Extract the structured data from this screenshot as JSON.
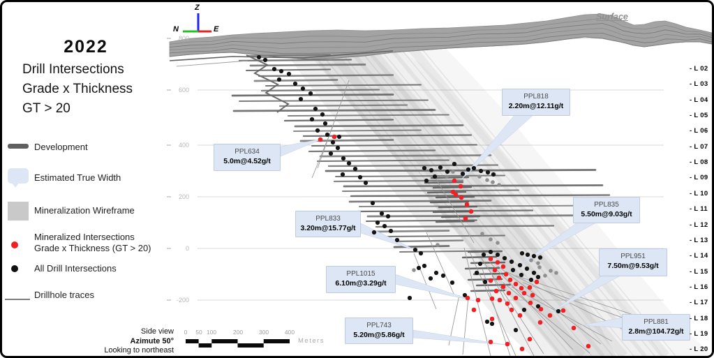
{
  "title": {
    "year": "2022",
    "lines": [
      "Drill Intersections",
      "Grade x Thickness",
      "GT > 20"
    ]
  },
  "legend": [
    {
      "name": "development",
      "label": "Development"
    },
    {
      "name": "estimated-true-width",
      "label": "Estimated True Width"
    },
    {
      "name": "mineralization-wireframe",
      "label": "Mineralization Wireframe"
    },
    {
      "name": "mineralized-intersections",
      "label": "Mineralized Intersections",
      "label2": "Grade x Thickness (GT > 20)"
    },
    {
      "name": "all-drill-intersections",
      "label": "All Drill Intersections"
    },
    {
      "name": "drillhole-traces",
      "label": "Drillhole traces"
    }
  ],
  "callouts": [
    {
      "id": "PPL634",
      "value": "5.0m@4.52g/t"
    },
    {
      "id": "PPL818",
      "value": "2.20m@12.11g/t"
    },
    {
      "id": "PPL833",
      "value": "3.20m@15.77g/t"
    },
    {
      "id": "PPL1015",
      "value": "6.10m@3.29g/t"
    },
    {
      "id": "PPL835",
      "value": "5.50m@9.03g/t"
    },
    {
      "id": "PPL951",
      "value": "7.50m@9.53g/t"
    },
    {
      "id": "PPL881",
      "value": "2.8m@104.72g/t"
    },
    {
      "id": "PPL743",
      "value": "5.20m@5.86g/t"
    }
  ],
  "axis_triad": {
    "up": "Z",
    "west": "N",
    "east": "E"
  },
  "surface_label": "Surface",
  "elevation_ticks": [
    "800",
    "600",
    "400",
    "200",
    "0",
    "-200"
  ],
  "levels": [
    "- L 02",
    "- L 03",
    "- L 04",
    "- L 05",
    "- L 06",
    "- L 07",
    "- L 08",
    "- L 09",
    "- L 10",
    "- L 11",
    "- L 12",
    "- L 13",
    "- L 14",
    "- L 15",
    "- L 16",
    "- L 17",
    "- L 18",
    "- L 19",
    "- L 20"
  ],
  "scale_bar": {
    "ticks": [
      "0",
      "50",
      "100",
      "200",
      "300",
      "400"
    ],
    "unit": "Meters"
  },
  "view_info": {
    "view": "Side view",
    "azimuth": "Azimute 50°",
    "looking": "Looking to northeast"
  },
  "colors": {
    "callout_fill": "#dce6f4",
    "callout_border": "#c2cfe4",
    "red_dot": "#ef2125",
    "black_dot": "#141414",
    "gray_dot": "#8f8f8f",
    "development": "#696969",
    "terrain": "#a3a3a3",
    "grid": "#dadada",
    "tick_label": "#b5b5b5",
    "axis_z": "#2323e8",
    "axis_n": "#21c121",
    "axis_e": "#e32222"
  }
}
